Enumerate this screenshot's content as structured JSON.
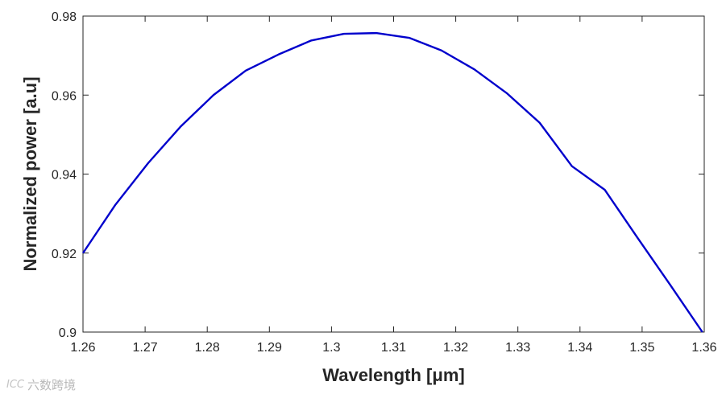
{
  "chart_data": {
    "type": "line",
    "title": "",
    "xlabel": "Wavelength [μm]",
    "ylabel": "Normalized power [a.u]",
    "xlim": [
      1.26,
      1.36
    ],
    "ylim": [
      0.9,
      0.98
    ],
    "xticks": [
      "1.26",
      "1.27",
      "1.28",
      "1.29",
      "1.3",
      "1.31",
      "1.32",
      "1.33",
      "1.34",
      "1.35",
      "1.36"
    ],
    "yticks": [
      "0.9",
      "0.92",
      "0.94",
      "0.96",
      "0.98"
    ],
    "grid": false,
    "box": true,
    "series": [
      {
        "color": "#0000cc",
        "x": [
          1.26,
          1.2652,
          1.2705,
          1.2757,
          1.281,
          1.2862,
          1.2915,
          1.2967,
          1.302,
          1.3072,
          1.3125,
          1.3177,
          1.323,
          1.3282,
          1.3335,
          1.3387,
          1.344,
          1.3492,
          1.3545,
          1.3597
        ],
        "y": [
          0.92,
          0.9322,
          0.9428,
          0.952,
          0.96,
          0.9662,
          0.9703,
          0.9738,
          0.9755,
          0.9757,
          0.9745,
          0.9713,
          0.9665,
          0.9605,
          0.953,
          0.942,
          0.936,
          0.924,
          0.912,
          0.9
        ]
      }
    ]
  },
  "watermark": {
    "logo": "ICC",
    "text": "六数跨境"
  }
}
